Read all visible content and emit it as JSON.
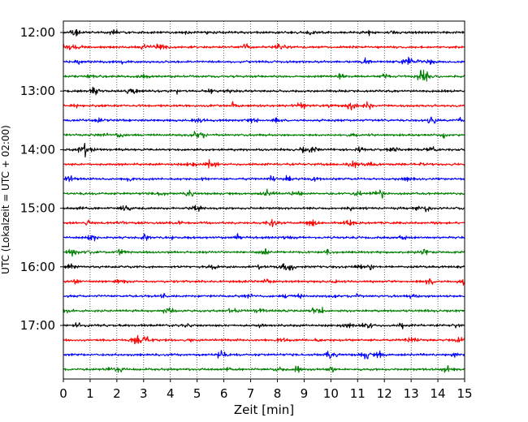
{
  "chart_data": {
    "type": "line",
    "title": "",
    "xlabel": "Zeit  [min]",
    "ylabel": "UTC (Lokalzeit = UTC + 02:00)",
    "xlim": [
      0,
      15
    ],
    "x_ticks": [
      0,
      1,
      2,
      3,
      4,
      5,
      6,
      7,
      8,
      9,
      10,
      11,
      12,
      13,
      14,
      15
    ],
    "y_tick_labels": [
      "12:00",
      "13:00",
      "14:00",
      "15:00",
      "16:00",
      "17:00"
    ],
    "grid": "vertical dotted lines at each minute",
    "traces_per_hour": 4,
    "trace_minutes": 15,
    "trace_colors": [
      "#000000",
      "#ff0000",
      "#0000ff",
      "#007f00"
    ],
    "traces": [
      {
        "start": "12:00",
        "color": "#000000"
      },
      {
        "start": "12:15",
        "color": "#ff0000"
      },
      {
        "start": "12:30",
        "color": "#0000ff"
      },
      {
        "start": "12:45",
        "color": "#007f00"
      },
      {
        "start": "13:00",
        "color": "#000000"
      },
      {
        "start": "13:15",
        "color": "#ff0000"
      },
      {
        "start": "13:30",
        "color": "#0000ff"
      },
      {
        "start": "13:45",
        "color": "#007f00"
      },
      {
        "start": "14:00",
        "color": "#000000"
      },
      {
        "start": "14:15",
        "color": "#ff0000"
      },
      {
        "start": "14:30",
        "color": "#0000ff"
      },
      {
        "start": "14:45",
        "color": "#007f00"
      },
      {
        "start": "15:00",
        "color": "#000000"
      },
      {
        "start": "15:15",
        "color": "#ff0000"
      },
      {
        "start": "15:30",
        "color": "#0000ff"
      },
      {
        "start": "15:45",
        "color": "#007f00"
      },
      {
        "start": "16:00",
        "color": "#000000"
      },
      {
        "start": "16:15",
        "color": "#ff0000"
      },
      {
        "start": "16:30",
        "color": "#0000ff"
      },
      {
        "start": "16:45",
        "color": "#007f00"
      },
      {
        "start": "17:00",
        "color": "#000000"
      },
      {
        "start": "17:15",
        "color": "#ff0000"
      },
      {
        "start": "17:30",
        "color": "#0000ff"
      },
      {
        "start": "17:45",
        "color": "#007f00"
      }
    ]
  }
}
